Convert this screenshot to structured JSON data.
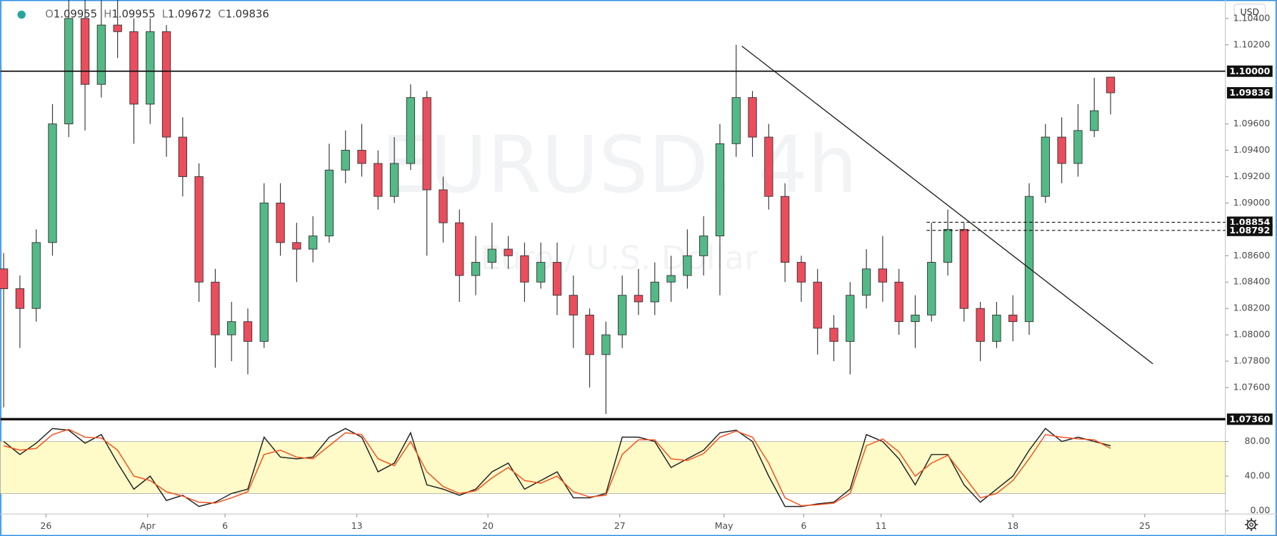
{
  "header": {
    "fields": [
      {
        "label": "O",
        "value": 1.09955
      },
      {
        "label": "H",
        "value": 1.09955
      },
      {
        "label": "L",
        "value": 1.09672
      },
      {
        "label": "C",
        "value": 1.09836
      }
    ]
  },
  "chart_data": [
    {
      "type": "candlestick",
      "title": "EURUSD, 4h",
      "subtitle": "Euro / U.S. Dollar",
      "currency": "USD",
      "up_color": "#53b987",
      "down_color": "#eb4d5c",
      "open": [
        1.085,
        1.0835,
        1.082,
        1.087,
        1.096,
        1.104,
        1.099,
        1.1035,
        1.103,
        1.0975,
        1.103,
        1.095,
        1.092,
        1.084,
        1.08,
        1.081,
        1.0795,
        1.09,
        1.087,
        1.0865,
        1.0875,
        1.0925,
        1.094,
        1.093,
        1.0905,
        1.093,
        1.098,
        1.091,
        1.0885,
        1.0845,
        1.0855,
        1.0865,
        1.086,
        1.084,
        1.0855,
        1.083,
        1.0815,
        1.0785,
        1.08,
        1.083,
        1.0825,
        1.084,
        1.0845,
        1.086,
        1.0875,
        1.0945,
        1.098,
        1.095,
        1.0905,
        1.0855,
        1.084,
        1.0805,
        1.0795,
        1.083,
        1.085,
        1.084,
        1.081,
        1.0815,
        1.0855,
        1.088,
        1.082,
        1.0795,
        1.0815,
        1.081,
        1.0905,
        1.095,
        1.093,
        1.0955,
        1.09955
      ],
      "high": [
        1.0862,
        1.0845,
        1.088,
        1.0975,
        1.106,
        1.106,
        1.106,
        1.106,
        1.104,
        1.104,
        1.1035,
        1.0965,
        1.093,
        1.085,
        1.0825,
        1.082,
        1.0915,
        1.0915,
        1.0885,
        1.089,
        1.0945,
        1.0955,
        1.096,
        1.094,
        1.095,
        1.099,
        1.0985,
        1.092,
        1.0895,
        1.0875,
        1.0885,
        1.0875,
        1.087,
        1.087,
        1.087,
        1.0845,
        1.082,
        1.081,
        1.0845,
        1.085,
        1.0855,
        1.086,
        1.088,
        1.089,
        1.096,
        1.102,
        1.0985,
        1.096,
        1.0915,
        1.086,
        1.085,
        1.0815,
        1.084,
        1.0865,
        1.0875,
        1.085,
        1.083,
        1.0885,
        1.0895,
        1.0885,
        1.0825,
        1.0825,
        1.083,
        1.0915,
        1.096,
        1.0965,
        1.0975,
        1.0995,
        1.09955
      ],
      "low": [
        1.0745,
        1.079,
        1.081,
        1.086,
        1.095,
        1.0955,
        1.098,
        1.101,
        1.0945,
        1.096,
        1.0935,
        1.0905,
        1.0825,
        1.0775,
        1.078,
        1.077,
        1.079,
        1.086,
        1.084,
        1.0855,
        1.087,
        1.0915,
        1.092,
        1.0895,
        1.09,
        1.0925,
        1.086,
        1.087,
        1.0825,
        1.083,
        1.085,
        1.085,
        1.0825,
        1.0835,
        1.0815,
        1.079,
        1.076,
        1.074,
        1.079,
        1.0815,
        1.0815,
        1.0825,
        1.0835,
        1.0845,
        1.083,
        1.0935,
        1.0935,
        1.0895,
        1.084,
        1.0825,
        1.0785,
        1.078,
        1.077,
        1.082,
        1.0825,
        1.08,
        1.079,
        1.081,
        1.0845,
        1.081,
        1.078,
        1.079,
        1.0795,
        1.08,
        1.09,
        1.0915,
        1.092,
        1.095,
        1.09672
      ],
      "close": [
        1.0835,
        1.082,
        1.087,
        1.096,
        1.104,
        1.099,
        1.1035,
        1.103,
        1.0975,
        1.103,
        1.095,
        1.092,
        1.084,
        1.08,
        1.081,
        1.0795,
        1.09,
        1.087,
        1.0865,
        1.0875,
        1.0925,
        1.094,
        1.093,
        1.0905,
        1.093,
        1.098,
        1.091,
        1.0885,
        1.0845,
        1.0855,
        1.0865,
        1.086,
        1.084,
        1.0855,
        1.083,
        1.0815,
        1.0785,
        1.08,
        1.083,
        1.0825,
        1.084,
        1.0845,
        1.086,
        1.0875,
        1.0945,
        1.098,
        1.095,
        1.0905,
        1.0855,
        1.084,
        1.0805,
        1.0795,
        1.083,
        1.085,
        1.084,
        1.081,
        1.0815,
        1.0855,
        1.088,
        1.082,
        1.0795,
        1.0815,
        1.081,
        1.0905,
        1.095,
        1.093,
        1.0955,
        1.097,
        1.09836
      ],
      "xlim": [
        -0.2,
        75.05
      ],
      "ylim": [
        1.0735,
        1.1054
      ],
      "xticks": [
        {
          "value": 2.6,
          "label": "26"
        },
        {
          "value": 8.85,
          "label": "Apr"
        },
        {
          "value": 13.6,
          "label": "6"
        },
        {
          "value": 21.7,
          "label": "13"
        },
        {
          "value": 29.75,
          "label": "20"
        },
        {
          "value": 37.85,
          "label": "27"
        },
        {
          "value": 44.25,
          "label": "May"
        },
        {
          "value": 49.15,
          "label": "6"
        },
        {
          "value": 53.9,
          "label": "11"
        },
        {
          "value": 62,
          "label": "18"
        },
        {
          "value": 70.1,
          "label": "25"
        }
      ],
      "yticks": [
        {
          "value": 1.104,
          "label": "1.10400"
        },
        {
          "value": 1.102,
          "label": "1.10200"
        },
        {
          "value": 1.096,
          "label": "1.09600"
        },
        {
          "value": 1.094,
          "label": "1.09400"
        },
        {
          "value": 1.092,
          "label": "1.09200"
        },
        {
          "value": 1.09,
          "label": "1.09000"
        },
        {
          "value": 1.086,
          "label": "1.08600"
        },
        {
          "value": 1.084,
          "label": "1.08400"
        },
        {
          "value": 1.082,
          "label": "1.08200"
        },
        {
          "value": 1.08,
          "label": "1.08000"
        },
        {
          "value": 1.078,
          "label": "1.07800"
        },
        {
          "value": 1.076,
          "label": "1.07600"
        }
      ],
      "levels": [
        {
          "value": 1.1,
          "label": "1.10000",
          "style": "solid"
        },
        {
          "value": 1.09836,
          "label": "1.09836",
          "style": "none"
        },
        {
          "value": 1.08854,
          "label": "1.08854",
          "style": "dashed",
          "from": 56.7
        },
        {
          "value": 1.08792,
          "label": "1.08792",
          "style": "dashed",
          "from": 56.7
        },
        {
          "value": 1.0736,
          "label": "1.07360",
          "style": "thick"
        }
      ],
      "trendline": {
        "x": [
          45.35,
          70.6
        ],
        "y": [
          1.1019,
          1.0778
        ]
      }
    },
    {
      "type": "line",
      "xlim": [
        -0.2,
        75.05
      ],
      "ylim": [
        -3.7,
        104.2
      ],
      "yticks": [
        {
          "value": 0,
          "label": "0.00"
        },
        {
          "value": 40,
          "label": "40.00"
        },
        {
          "value": 80,
          "label": "80.00"
        }
      ],
      "band": [
        20,
        80
      ],
      "band_color": "#fffbc8",
      "series": [
        {
          "color": "#222222",
          "values": [
            80,
            65,
            78,
            95,
            93,
            78,
            88,
            55,
            25,
            40,
            12,
            18,
            5,
            10,
            20,
            25,
            85,
            62,
            60,
            62,
            85,
            95,
            85,
            45,
            55,
            90,
            30,
            25,
            18,
            25,
            45,
            55,
            25,
            35,
            45,
            15,
            15,
            20,
            85,
            85,
            80,
            50,
            60,
            70,
            90,
            93,
            80,
            40,
            5,
            5,
            8,
            10,
            25,
            88,
            80,
            60,
            30,
            65,
            65,
            30,
            10,
            25,
            40,
            70,
            95,
            80,
            85,
            80,
            75
          ]
        },
        {
          "color": "#f4511e",
          "values": [
            75,
            70,
            72,
            88,
            94,
            85,
            84,
            70,
            40,
            35,
            22,
            17,
            10,
            9,
            15,
            22,
            65,
            70,
            62,
            60,
            75,
            90,
            88,
            60,
            52,
            80,
            45,
            28,
            20,
            23,
            38,
            50,
            35,
            32,
            40,
            22,
            16,
            18,
            65,
            82,
            82,
            60,
            58,
            66,
            85,
            92,
            85,
            55,
            15,
            6,
            7,
            9,
            20,
            75,
            83,
            68,
            40,
            55,
            64,
            40,
            15,
            20,
            35,
            60,
            88,
            85,
            83,
            82,
            72
          ]
        }
      ]
    }
  ]
}
